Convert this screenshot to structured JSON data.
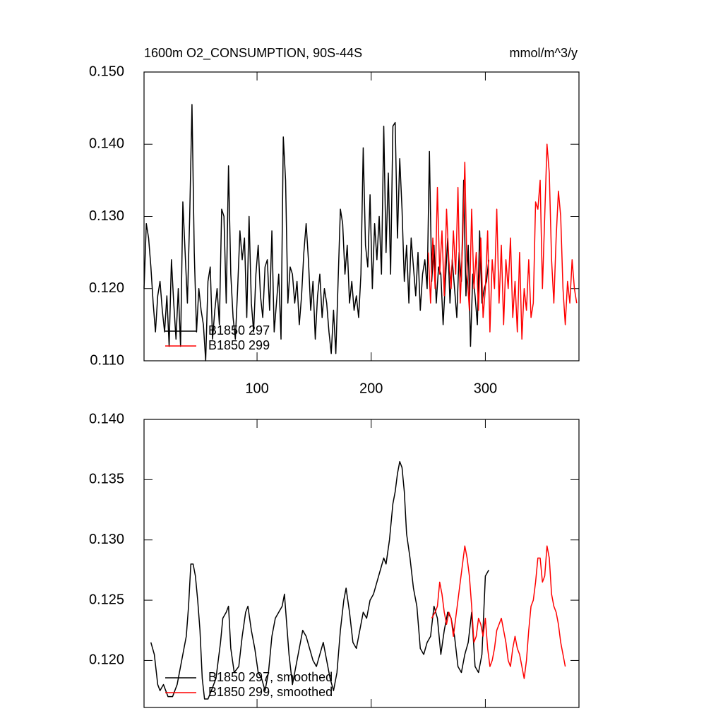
{
  "chart_data": [
    {
      "type": "line",
      "title": "1600m O2_CONSUMPTION, 90S-44S",
      "units": "mmol/m^3/y",
      "xlim": [
        1,
        382
      ],
      "xticks": [
        100,
        200,
        300
      ],
      "show_x_tick_labels": true,
      "ylim": [
        0.11,
        0.15
      ],
      "yticks": [
        {
          "value": 0.11,
          "label": "0.110"
        },
        {
          "value": 0.12,
          "label": "0.120"
        },
        {
          "value": 0.13,
          "label": "0.130"
        },
        {
          "value": 0.14,
          "label": "0.140"
        },
        {
          "value": 0.15,
          "label": "0.150"
        }
      ],
      "legend": "bottom-left",
      "series": [
        {
          "name": "B1850 297",
          "color": "#000000",
          "x": [
            1,
            3,
            5,
            7,
            9,
            11,
            13,
            15,
            17,
            19,
            21,
            23,
            25,
            27,
            29,
            31,
            33,
            35,
            37,
            39,
            41,
            43,
            45,
            47,
            49,
            51,
            53,
            55,
            57,
            59,
            61,
            63,
            65,
            67,
            69,
            71,
            73,
            75,
            77,
            79,
            81,
            83,
            85,
            87,
            89,
            91,
            93,
            95,
            97,
            99,
            101,
            103,
            105,
            107,
            109,
            111,
            113,
            115,
            117,
            119,
            121,
            123,
            125,
            127,
            129,
            131,
            133,
            135,
            137,
            139,
            141,
            143,
            145,
            147,
            149,
            151,
            153,
            155,
            157,
            159,
            161,
            163,
            165,
            167,
            169,
            171,
            173,
            175,
            177,
            179,
            181,
            183,
            185,
            187,
            189,
            191,
            193,
            195,
            197,
            199,
            201,
            203,
            205,
            207,
            209,
            211,
            213,
            215,
            217,
            219,
            221,
            223,
            225,
            227,
            229,
            231,
            233,
            235,
            237,
            239,
            241,
            243,
            245,
            247,
            249,
            251,
            253,
            255,
            257,
            259,
            261,
            263,
            265,
            267,
            269,
            271,
            273,
            275,
            277,
            279,
            281,
            283,
            285,
            287,
            289,
            291,
            293,
            295,
            297,
            299,
            301,
            303
          ],
          "values": [
            0.12,
            0.129,
            0.127,
            0.123,
            0.118,
            0.114,
            0.119,
            0.121,
            0.117,
            0.114,
            0.119,
            0.112,
            0.124,
            0.118,
            0.113,
            0.12,
            0.112,
            0.132,
            0.125,
            0.118,
            0.13,
            0.1455,
            0.125,
            0.114,
            0.12,
            0.117,
            0.115,
            0.11,
            0.121,
            0.123,
            0.113,
            0.117,
            0.12,
            0.115,
            0.131,
            0.13,
            0.118,
            0.137,
            0.122,
            0.116,
            0.113,
            0.12,
            0.128,
            0.124,
            0.127,
            0.116,
            0.13,
            0.118,
            0.114,
            0.122,
            0.126,
            0.119,
            0.116,
            0.123,
            0.124,
            0.117,
            0.128,
            0.114,
            0.118,
            0.122,
            0.113,
            0.141,
            0.135,
            0.118,
            0.123,
            0.122,
            0.118,
            0.121,
            0.115,
            0.119,
            0.125,
            0.129,
            0.124,
            0.117,
            0.121,
            0.113,
            0.119,
            0.122,
            0.116,
            0.12,
            0.118,
            0.114,
            0.111,
            0.117,
            0.111,
            0.121,
            0.131,
            0.129,
            0.122,
            0.126,
            0.118,
            0.121,
            0.117,
            0.119,
            0.116,
            0.122,
            0.1395,
            0.126,
            0.123,
            0.133,
            0.12,
            0.129,
            0.124,
            0.13,
            0.122,
            0.1425,
            0.125,
            0.136,
            0.122,
            0.1425,
            0.143,
            0.127,
            0.138,
            0.131,
            0.121,
            0.126,
            0.118,
            0.127,
            0.123,
            0.119,
            0.125,
            0.117,
            0.122,
            0.124,
            0.12,
            0.139,
            0.121,
            0.126,
            0.118,
            0.123,
            0.122,
            0.115,
            0.121,
            0.127,
            0.118,
            0.124,
            0.12,
            0.116,
            0.125,
            0.121,
            0.135,
            0.119,
            0.126,
            0.112,
            0.122,
            0.119,
            0.115,
            0.128,
            0.118,
            0.12,
            0.121,
            0.124
          ]
        },
        {
          "name": "B1850 299",
          "color": "#ff0000",
          "x": [
            250,
            252,
            254,
            256,
            258,
            260,
            262,
            264,
            266,
            268,
            270,
            272,
            274,
            276,
            278,
            280,
            282,
            284,
            286,
            288,
            290,
            292,
            294,
            296,
            298,
            300,
            302,
            304,
            306,
            308,
            310,
            312,
            314,
            316,
            318,
            320,
            322,
            324,
            326,
            328,
            330,
            332,
            334,
            336,
            338,
            340,
            342,
            344,
            346,
            348,
            350,
            352,
            354,
            356,
            358,
            360,
            362,
            364,
            366,
            368,
            370,
            372,
            374,
            376,
            378,
            380
          ],
          "values": [
            0.125,
            0.118,
            0.127,
            0.12,
            0.134,
            0.122,
            0.128,
            0.119,
            0.131,
            0.124,
            0.12,
            0.128,
            0.122,
            0.134,
            0.118,
            0.126,
            0.1375,
            0.122,
            0.117,
            0.131,
            0.12,
            0.125,
            0.117,
            0.127,
            0.116,
            0.12,
            0.128,
            0.114,
            0.124,
            0.12,
            0.131,
            0.118,
            0.126,
            0.115,
            0.124,
            0.12,
            0.127,
            0.116,
            0.121,
            0.114,
            0.125,
            0.113,
            0.12,
            0.117,
            0.124,
            0.116,
            0.118,
            0.132,
            0.131,
            0.135,
            0.12,
            0.13,
            0.14,
            0.136,
            0.124,
            0.118,
            0.127,
            0.1335,
            0.13,
            0.12,
            0.115,
            0.121,
            0.118,
            0.124,
            0.12,
            0.118
          ]
        }
      ]
    },
    {
      "type": "line",
      "xlim": [
        1,
        382
      ],
      "xticks": [
        100,
        200,
        300
      ],
      "show_x_tick_labels": false,
      "ylim": [
        0.1161,
        0.14
      ],
      "yticks": [
        {
          "value": 0.12,
          "label": "0.120"
        },
        {
          "value": 0.125,
          "label": "0.125"
        },
        {
          "value": 0.13,
          "label": "0.130"
        },
        {
          "value": 0.135,
          "label": "0.135"
        },
        {
          "value": 0.14,
          "label": "0.140"
        }
      ],
      "legend": "bottom-left",
      "series": [
        {
          "name": "B1850 297, smoothed",
          "color": "#000000",
          "x": [
            7,
            10,
            13,
            15,
            18,
            22,
            26,
            30,
            34,
            38,
            40,
            42,
            44,
            46,
            48,
            50,
            52,
            54,
            57,
            60,
            64,
            68,
            70,
            73,
            75,
            77,
            80,
            84,
            87,
            90,
            92,
            95,
            98,
            101,
            104,
            107,
            110,
            113,
            116,
            119,
            122,
            124,
            126,
            128,
            131,
            134,
            137,
            140,
            143,
            146,
            149,
            152,
            155,
            158,
            161,
            164,
            167,
            170,
            173,
            176,
            178,
            181,
            184,
            187,
            190,
            193,
            196,
            199,
            202,
            205,
            208,
            211,
            213,
            216,
            219,
            221,
            223,
            225,
            227,
            229,
            231,
            234,
            237,
            240,
            243,
            246,
            249,
            252,
            255,
            258,
            261,
            264,
            267,
            270,
            273,
            276,
            279,
            282,
            285,
            288,
            291,
            294,
            297,
            300,
            303
          ],
          "values": [
            0.1215,
            0.1205,
            0.118,
            0.1175,
            0.118,
            0.117,
            0.117,
            0.118,
            0.12,
            0.122,
            0.1245,
            0.128,
            0.128,
            0.127,
            0.125,
            0.1225,
            0.1185,
            0.1168,
            0.1168,
            0.1175,
            0.1185,
            0.1215,
            0.1235,
            0.124,
            0.1245,
            0.121,
            0.119,
            0.1195,
            0.122,
            0.124,
            0.1245,
            0.1225,
            0.121,
            0.119,
            0.1185,
            0.1175,
            0.119,
            0.122,
            0.1235,
            0.124,
            0.1245,
            0.1255,
            0.123,
            0.1205,
            0.118,
            0.1195,
            0.121,
            0.1225,
            0.122,
            0.121,
            0.12,
            0.1195,
            0.1205,
            0.1215,
            0.12,
            0.1185,
            0.1175,
            0.119,
            0.1225,
            0.125,
            0.126,
            0.124,
            0.1215,
            0.121,
            0.1225,
            0.124,
            0.1235,
            0.125,
            0.1255,
            0.1265,
            0.1275,
            0.1285,
            0.128,
            0.13,
            0.133,
            0.134,
            0.1355,
            0.1365,
            0.136,
            0.134,
            0.1305,
            0.1285,
            0.126,
            0.1245,
            0.121,
            0.1205,
            0.1215,
            0.122,
            0.1245,
            0.1235,
            0.1205,
            0.1225,
            0.124,
            0.1235,
            0.122,
            0.1195,
            0.119,
            0.1205,
            0.1215,
            0.124,
            0.1195,
            0.119,
            0.1205,
            0.127,
            0.1275
          ]
        },
        {
          "name": "B1850 299, smoothed",
          "color": "#ff0000",
          "x": [
            253,
            256,
            258,
            260,
            262,
            264,
            266,
            268,
            270,
            272,
            274,
            276,
            278,
            280,
            282,
            284,
            286,
            288,
            290,
            292,
            294,
            296,
            298,
            300,
            302,
            304,
            306,
            308,
            310,
            312,
            314,
            316,
            318,
            320,
            322,
            324,
            326,
            328,
            330,
            332,
            334,
            336,
            338,
            340,
            342,
            344,
            346,
            348,
            350,
            352,
            354,
            356,
            358,
            360,
            362,
            364,
            366,
            368,
            370
          ],
          "values": [
            0.1235,
            0.124,
            0.1245,
            0.1265,
            0.1255,
            0.124,
            0.123,
            0.124,
            0.1235,
            0.122,
            0.1235,
            0.125,
            0.1265,
            0.128,
            0.1295,
            0.1285,
            0.127,
            0.1245,
            0.1215,
            0.122,
            0.1235,
            0.123,
            0.122,
            0.1235,
            0.121,
            0.1195,
            0.12,
            0.121,
            0.1225,
            0.123,
            0.1235,
            0.1225,
            0.1215,
            0.12,
            0.1195,
            0.121,
            0.122,
            0.121,
            0.1205,
            0.1195,
            0.1185,
            0.12,
            0.1225,
            0.1245,
            0.125,
            0.1265,
            0.1285,
            0.1285,
            0.1265,
            0.127,
            0.1295,
            0.1285,
            0.1255,
            0.1245,
            0.124,
            0.123,
            0.1215,
            0.1205,
            0.1195
          ]
        }
      ]
    }
  ]
}
